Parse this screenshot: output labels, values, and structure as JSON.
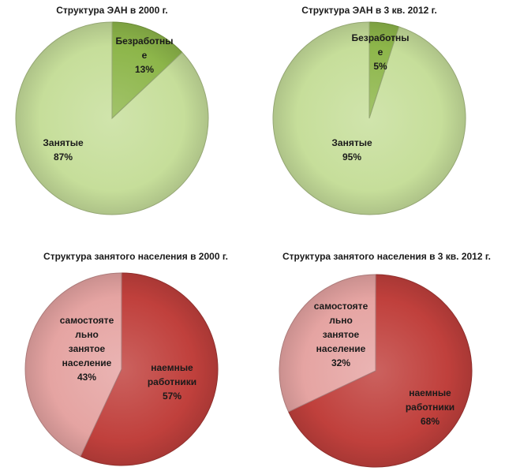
{
  "chart_data": [
    {
      "type": "pie",
      "title": "Структура ЭАН в 2000 г.",
      "slices": [
        {
          "label_lines": [
            "Безработны",
            "е",
            "13%"
          ],
          "value": 13,
          "color": "#8db64a"
        },
        {
          "label_lines": [
            "Занятые",
            "87%"
          ],
          "value": 87,
          "color": "#c6de9a"
        }
      ]
    },
    {
      "type": "pie",
      "title": "Структура ЭАН в 3 кв. 2012 г.",
      "slices": [
        {
          "label_lines": [
            "Безработны",
            "е",
            "5%"
          ],
          "value": 5,
          "color": "#8db64a"
        },
        {
          "label_lines": [
            "Занятые",
            "95%"
          ],
          "value": 95,
          "color": "#c6de9a"
        }
      ]
    },
    {
      "type": "pie",
      "title": "Структура занятого населения в 2000 г.",
      "slices": [
        {
          "label_lines": [
            "наемные",
            "работники",
            "57%"
          ],
          "value": 57,
          "color": "#c0403c"
        },
        {
          "label_lines": [
            "самостояте",
            "льно",
            "занятое",
            "население",
            "43%"
          ],
          "value": 43,
          "color": "#e5a4a2"
        }
      ]
    },
    {
      "type": "pie",
      "title": "Структура занятого населения в 3 кв. 2012 г.",
      "slices": [
        {
          "label_lines": [
            "наемные",
            "работники",
            "68%"
          ],
          "value": 68,
          "color": "#c0403c"
        },
        {
          "label_lines": [
            "самостояте",
            "льно",
            "занятое",
            "население",
            "32%"
          ],
          "value": 32,
          "color": "#e5a4a2"
        }
      ]
    }
  ]
}
